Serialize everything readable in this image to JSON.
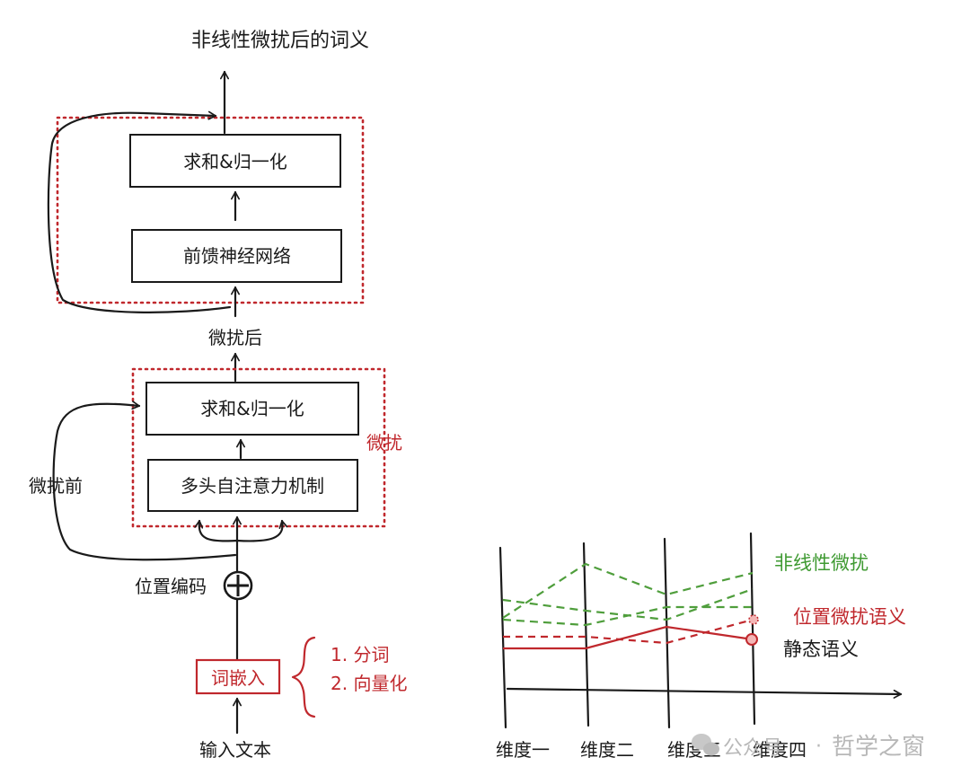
{
  "architecture": {
    "output_label": "非线性微扰后的词义",
    "ffn_block": {
      "sum_norm_label": "求和&归一化",
      "ffn_label": "前馈神经网络"
    },
    "after_perturbation_label": "微扰后",
    "attention_block": {
      "sum_norm_label": "求和&归一化",
      "attention_label": "多头自注意力机制",
      "block_label": "微扰"
    },
    "before_perturbation_label": "微扰前",
    "positional_encoding_label": "位置编码",
    "add_symbol": "⊕",
    "embedding_label": "词嵌入",
    "embedding_steps": [
      "1. 分词",
      "2. 向量化"
    ],
    "input_label": "输入文本"
  },
  "dimension_chart": {
    "axis_labels": [
      "维度一",
      "维度二",
      "维度三",
      "维度四"
    ],
    "series": [
      {
        "name": "非线性微扰",
        "color": "#4f9e3c",
        "style": "dashed"
      },
      {
        "name": "位置微扰语义",
        "color": "#c0282d",
        "style": "dashed"
      },
      {
        "name": "静态语义",
        "color": "#1a1a1a",
        "line_color": "#c0282d",
        "style": "solid"
      }
    ]
  },
  "watermark": {
    "source": "公众号",
    "separator": "·",
    "author": "哲学之窗"
  }
}
